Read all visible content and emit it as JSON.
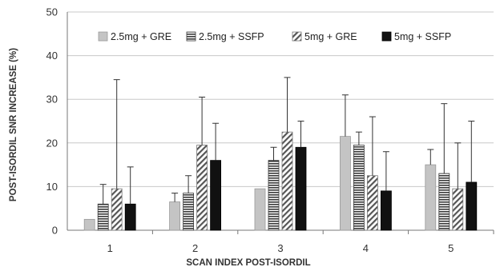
{
  "chart_data": {
    "type": "bar",
    "xlabel": "SCAN  INDEX POST-ISORDIL",
    "ylabel": "POST-ISORDIL SNR INCREASE (%)",
    "ylim": [
      0,
      50
    ],
    "yticks": [
      "0",
      "10",
      "20",
      "30",
      "40",
      "50"
    ],
    "categories": [
      "1",
      "2",
      "3",
      "4",
      "5"
    ],
    "grid": "horizontal",
    "legend_position": "top, inside plot",
    "series": [
      {
        "name": "2.5mg + GRE",
        "pattern": "solid-light-gray",
        "values": [
          2.5,
          6.5,
          9.5,
          21.5,
          15
        ],
        "error": [
          0,
          2,
          0,
          9.5,
          3.5
        ]
      },
      {
        "name": "2.5mg + SSFP",
        "pattern": "horizontal-stripes",
        "values": [
          6,
          8.5,
          16,
          19.5,
          13
        ],
        "error": [
          4.5,
          4,
          3,
          3,
          16
        ]
      },
      {
        "name": "5mg + GRE",
        "pattern": "diagonal-stripes",
        "values": [
          9.5,
          19.5,
          22.5,
          12.5,
          9.5
        ],
        "error": [
          25,
          11,
          12.5,
          13.5,
          10.5
        ]
      },
      {
        "name": "5mg + SSFP",
        "pattern": "solid-black",
        "values": [
          6,
          16,
          19,
          9,
          11
        ],
        "error": [
          8.5,
          8.5,
          6,
          9,
          14
        ]
      }
    ],
    "colors": {
      "light_gray_fill": "#c4c4c4",
      "stripe_dark": "#3a3a3a",
      "black_fill": "#111111",
      "axis": "#777777",
      "grid": "#c8c8c8"
    }
  }
}
